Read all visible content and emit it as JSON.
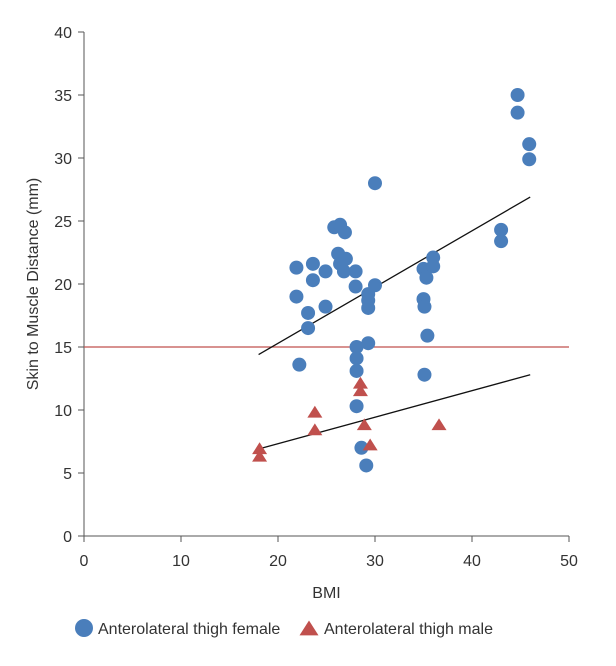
{
  "chart_data": {
    "type": "scatter",
    "xlabel": "BMI",
    "ylabel": "Skin to Muscle Distance (mm)",
    "xlim": [
      0,
      50
    ],
    "ylim": [
      0,
      40
    ],
    "xticks": [
      0,
      10,
      20,
      30,
      40,
      50
    ],
    "yticks": [
      0,
      5,
      10,
      15,
      20,
      25,
      30,
      35,
      40
    ],
    "grid": false,
    "legend_position": "bottom",
    "series": [
      {
        "name": "Anterolateral thigh female",
        "marker": "circle",
        "color": "#4a7ebb",
        "points": [
          [
            21.9,
            21.3
          ],
          [
            21.9,
            19.0
          ],
          [
            22.2,
            13.6
          ],
          [
            23.1,
            17.7
          ],
          [
            23.1,
            16.5
          ],
          [
            23.6,
            21.6
          ],
          [
            23.6,
            20.3
          ],
          [
            24.9,
            21.0
          ],
          [
            24.9,
            18.2
          ],
          [
            25.8,
            24.5
          ],
          [
            26.2,
            22.4
          ],
          [
            26.4,
            24.7
          ],
          [
            26.4,
            21.6
          ],
          [
            26.8,
            21.0
          ],
          [
            26.9,
            24.1
          ],
          [
            27.0,
            22.0
          ],
          [
            28.0,
            21.0
          ],
          [
            28.0,
            19.8
          ],
          [
            28.1,
            15.0
          ],
          [
            28.1,
            14.1
          ],
          [
            28.1,
            13.1
          ],
          [
            28.1,
            10.3
          ],
          [
            28.6,
            7.0
          ],
          [
            29.1,
            5.6
          ],
          [
            29.3,
            19.2
          ],
          [
            29.3,
            18.7
          ],
          [
            29.3,
            18.1
          ],
          [
            29.3,
            15.3
          ],
          [
            30.0,
            28.0
          ],
          [
            30.0,
            19.9
          ],
          [
            35.0,
            21.2
          ],
          [
            35.0,
            18.8
          ],
          [
            35.1,
            18.2
          ],
          [
            35.1,
            12.8
          ],
          [
            35.3,
            20.5
          ],
          [
            35.4,
            15.9
          ],
          [
            36.0,
            22.1
          ],
          [
            36.0,
            21.4
          ],
          [
            43.0,
            24.3
          ],
          [
            43.0,
            23.4
          ],
          [
            44.7,
            35.0
          ],
          [
            44.7,
            33.6
          ],
          [
            45.9,
            31.1
          ],
          [
            45.9,
            29.9
          ]
        ],
        "trend": [
          [
            18.0,
            14.4
          ],
          [
            46.0,
            26.9
          ]
        ]
      },
      {
        "name": "Anterolateral thigh male",
        "marker": "triangle",
        "color": "#c0504d",
        "points": [
          [
            18.1,
            6.9
          ],
          [
            18.1,
            6.3
          ],
          [
            23.8,
            9.8
          ],
          [
            23.8,
            8.4
          ],
          [
            28.5,
            12.1
          ],
          [
            28.5,
            11.5
          ],
          [
            28.9,
            8.8
          ],
          [
            29.5,
            7.2
          ],
          [
            36.6,
            8.8
          ]
        ],
        "trend": [
          [
            18.0,
            6.9
          ],
          [
            46.0,
            12.8
          ]
        ]
      }
    ],
    "reference_line": {
      "y": 15.0,
      "color": "#c0504d"
    }
  }
}
